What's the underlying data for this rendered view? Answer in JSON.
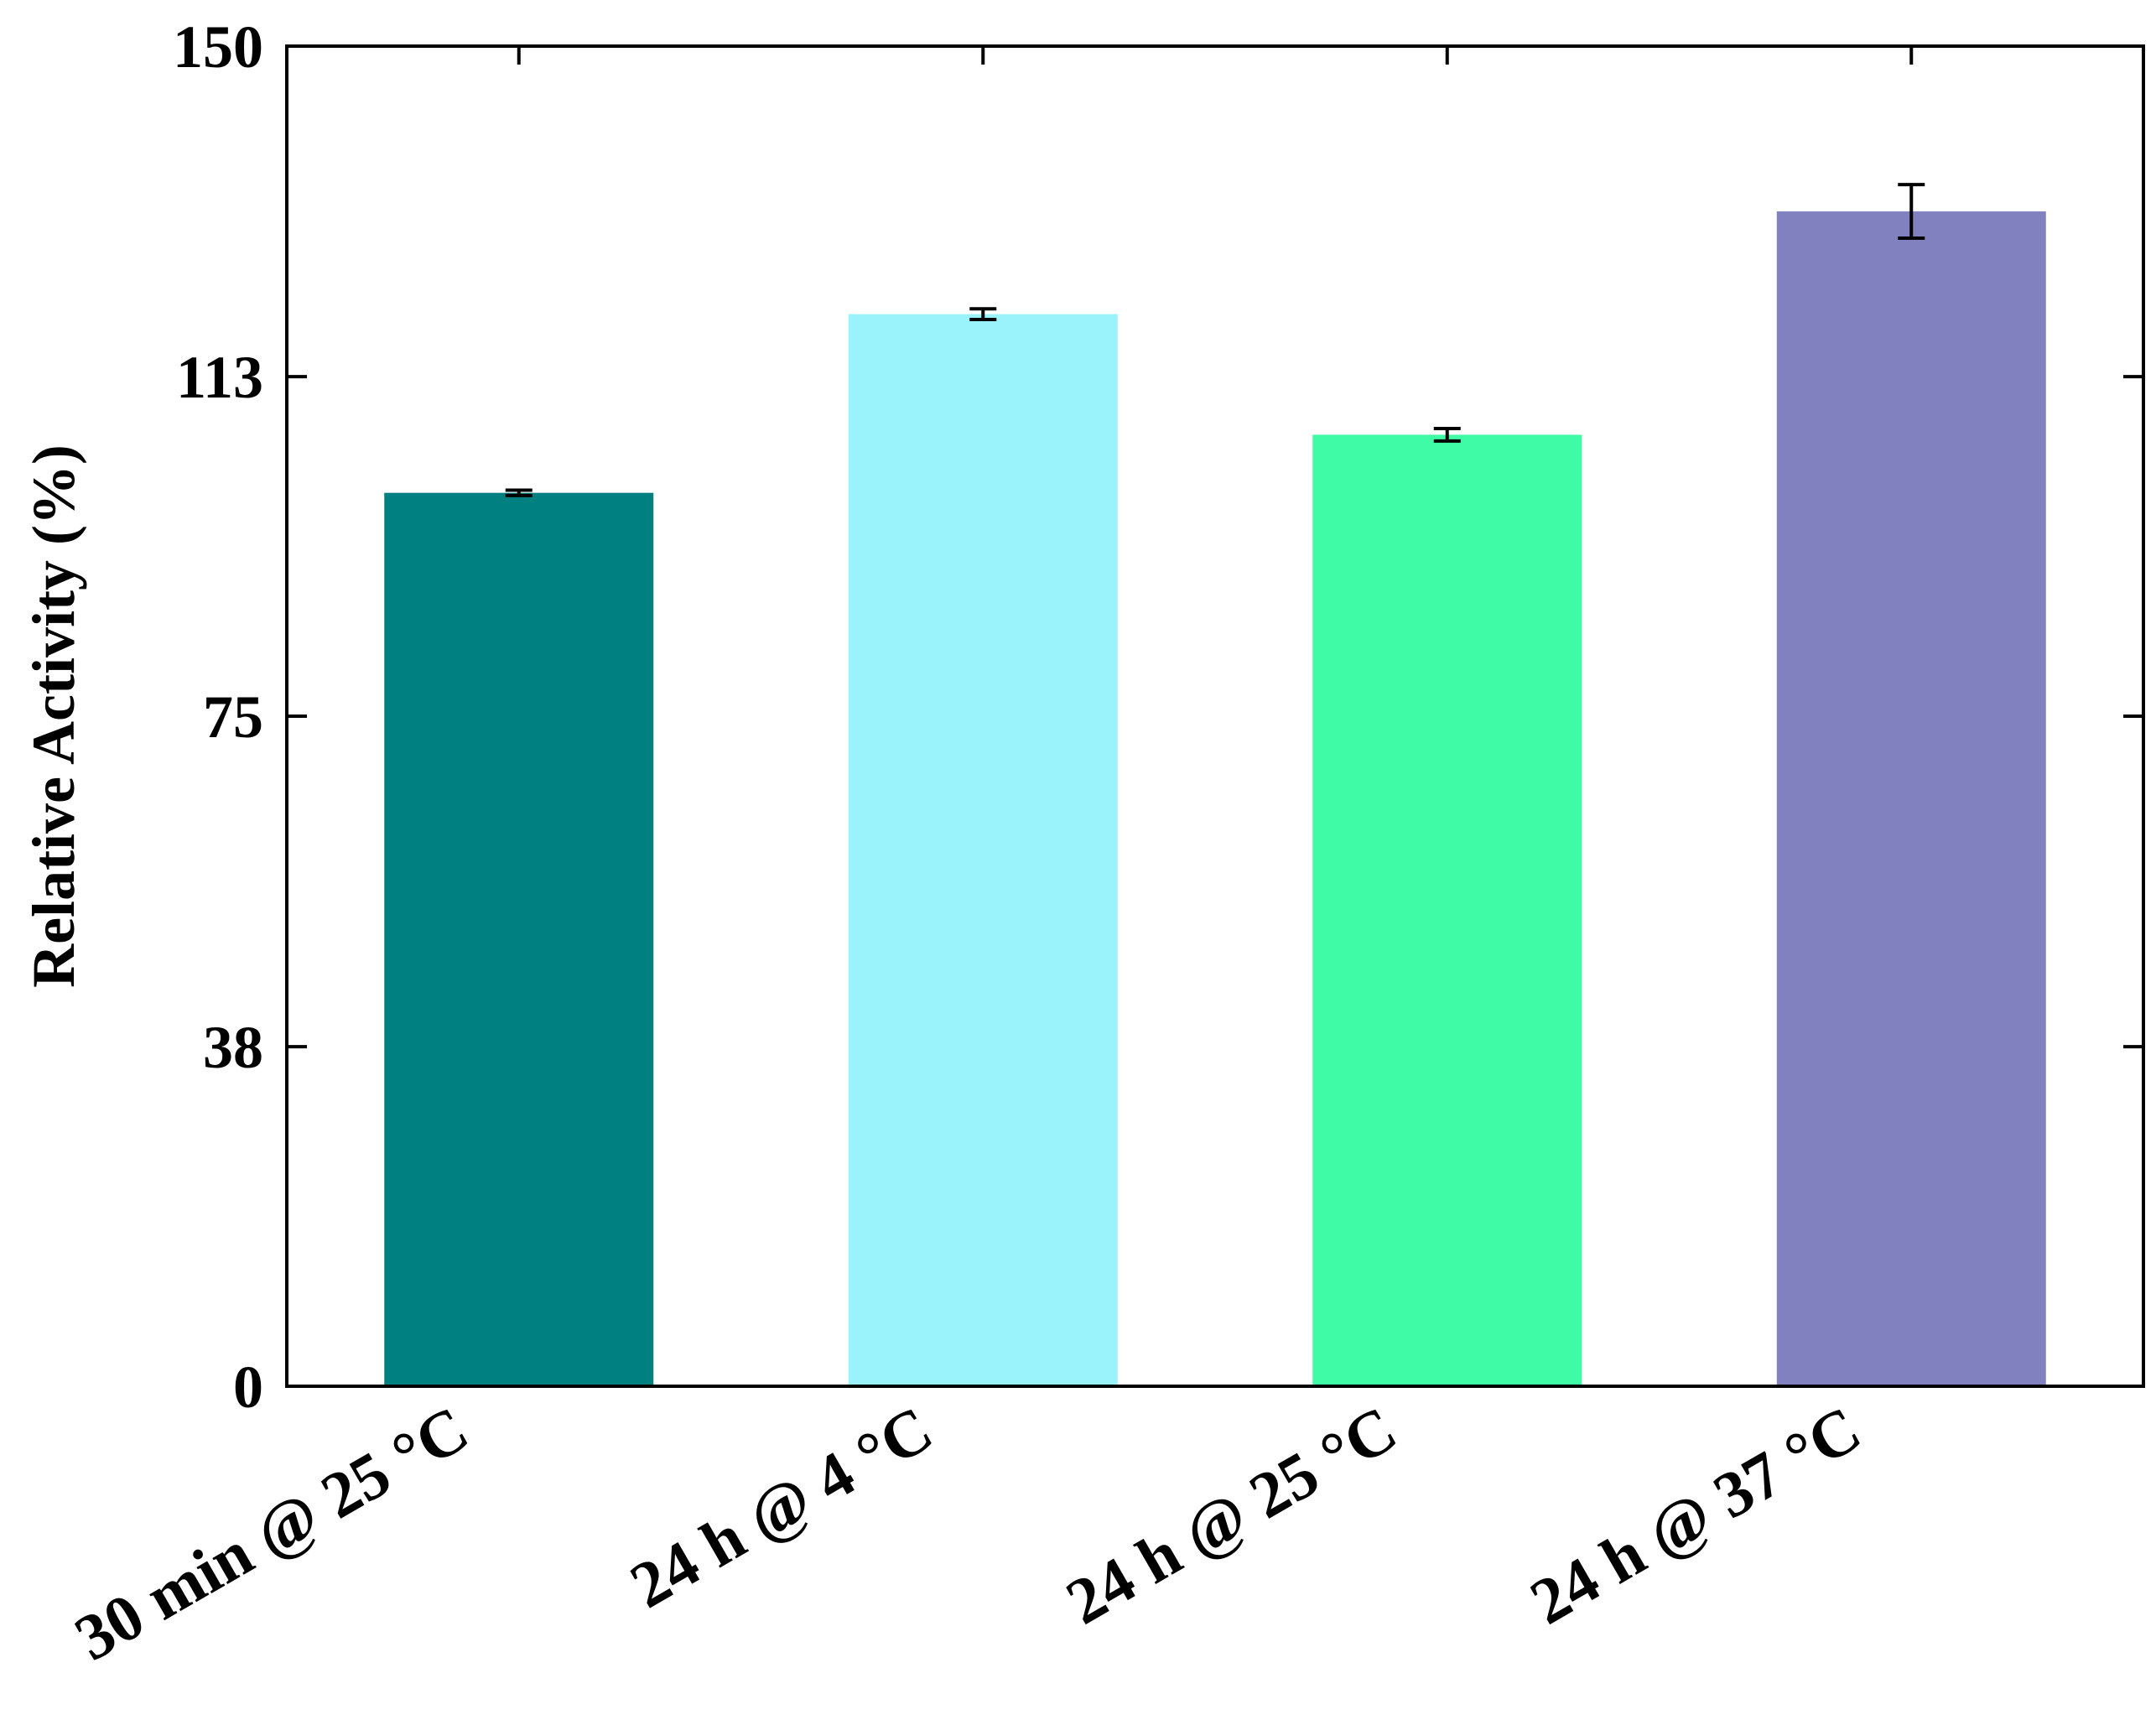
{
  "chart_data": {
    "type": "bar",
    "title": "",
    "xlabel": "",
    "ylabel": "Relative Activity (%)",
    "ylim": [
      0,
      150
    ],
    "yticks": [
      0,
      38,
      75,
      113,
      150
    ],
    "grid": false,
    "categories": [
      "30 min @ 25 °C",
      "24 h @ 4 °C",
      "24 h @ 25 °C",
      "24 h @ 37 °C"
    ],
    "values": [
      100,
      120,
      106.5,
      131.5
    ],
    "errors": [
      0.3,
      0.6,
      0.7,
      3
    ],
    "colors": [
      "#008080",
      "#9AF3FA",
      "#40FBA5",
      "#8281BF"
    ]
  }
}
